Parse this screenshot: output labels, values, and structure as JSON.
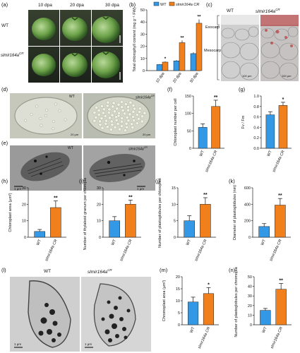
{
  "labels": {
    "a": "(a)",
    "b": "(b)",
    "c": "(c)",
    "d": "(d)",
    "e": "(e)",
    "f": "(f)",
    "g": "(g)",
    "h": "(h)",
    "i": "(i)",
    "j": "(j)",
    "k": "(k)",
    "l": "(l)",
    "m": "(m)",
    "n": "(n)"
  },
  "panel_a": {
    "dpa": [
      "10 dpa",
      "20 dpa",
      "30 dpa"
    ],
    "row_wt": "WT",
    "row_mut": "slmir164a",
    "row_mut_sup": "CR"
  },
  "panel_c": {
    "wt": "WT",
    "mut": "slmir164a",
    "mut_sup": "CR",
    "exocarp": "Exocarp",
    "mesocarp": "Mesocarp",
    "scale": "100 µm"
  },
  "panel_d": {
    "wt": "WT",
    "mut": "slmir164a",
    "mut_sup": "CR",
    "scale": "20 µm"
  },
  "panel_e": {
    "wt": "WT",
    "mut": "slmir164a",
    "mut_sup": "CR",
    "scale": "1 µm"
  },
  "panel_l": {
    "wt": "WT",
    "mut": "slmir164a",
    "mut_sup": "CR",
    "scale": "1 µm"
  },
  "chart_data": [
    {
      "panel": "b",
      "type": "bar",
      "ylabel": "Total chlorophyll content (mg g⁻¹ FW)",
      "categories": [
        "10 dpa",
        "20 dpa",
        "30 dpa"
      ],
      "ylim": [
        0,
        50
      ],
      "yticks": [
        0,
        10,
        20,
        30,
        40,
        50
      ],
      "legend": [
        "WT",
        "slmir164a CR"
      ],
      "series": [
        {
          "name": "WT",
          "values": [
            5,
            8,
            14
          ]
        },
        {
          "name": "slmir164a CR",
          "values": [
            7,
            23,
            39
          ]
        }
      ],
      "significance": [
        "*",
        "**",
        "**"
      ]
    },
    {
      "panel": "f",
      "type": "bar",
      "ylabel": "Chloroplast number per cell",
      "categories": [
        "WT",
        "slmir164a CR"
      ],
      "values": [
        60,
        120
      ],
      "errors": [
        10,
        18
      ],
      "ylim": [
        0,
        150
      ],
      "yticks": [
        0,
        50,
        100,
        150
      ],
      "significance": "**"
    },
    {
      "panel": "g",
      "type": "bar",
      "ylabel": "Fv / Fm",
      "categories": [
        "WT",
        "slmir164a CR"
      ],
      "values": [
        0.64,
        0.82
      ],
      "errors": [
        0.06,
        0.06
      ],
      "ylim": [
        0,
        1.0
      ],
      "yticks": [
        0.0,
        0.2,
        0.4,
        0.6,
        0.8,
        1.0
      ],
      "significance": "*"
    },
    {
      "panel": "h",
      "type": "bar",
      "ylabel": "Chloroplast area (µm²)",
      "categories": [
        "WT",
        "slmir164a CR"
      ],
      "values": [
        3.5,
        18
      ],
      "errors": [
        1.2,
        4
      ],
      "ylim": [
        0,
        30
      ],
      "yticks": [
        0,
        10,
        20,
        30
      ],
      "significance": "**"
    },
    {
      "panel": "i",
      "type": "bar",
      "ylabel": "Number of thylakoid granum per chloroplast",
      "categories": [
        "WT",
        "slmir164a CR"
      ],
      "values": [
        10,
        20
      ],
      "errors": [
        2.5,
        2.5
      ],
      "ylim": [
        0,
        30
      ],
      "yticks": [
        0,
        10,
        20,
        30
      ],
      "significance": "**"
    },
    {
      "panel": "j",
      "type": "bar",
      "ylabel": "Number of plastoglobules per chloroplast",
      "categories": [
        "WT",
        "slmir164a CR"
      ],
      "values": [
        5,
        10
      ],
      "errors": [
        1.5,
        2
      ],
      "ylim": [
        0,
        15
      ],
      "yticks": [
        0,
        5,
        10,
        15
      ],
      "significance": "**"
    },
    {
      "panel": "k",
      "type": "bar",
      "ylabel": "Diameter of plastoglobules (nm)",
      "categories": [
        "WT",
        "slmir164a CR"
      ],
      "values": [
        130,
        390
      ],
      "errors": [
        35,
        80
      ],
      "ylim": [
        0,
        600
      ],
      "yticks": [
        0,
        200,
        400,
        600
      ],
      "significance": "**"
    },
    {
      "panel": "m",
      "type": "bar",
      "ylabel": "Chromoplast area (µm²)",
      "categories": [
        "WT",
        "slmir164a CR"
      ],
      "values": [
        9.5,
        13
      ],
      "errors": [
        2,
        2.5
      ],
      "ylim": [
        0,
        20
      ],
      "yticks": [
        0,
        5,
        10,
        15,
        20
      ],
      "significance": "*"
    },
    {
      "panel": "n",
      "type": "bar",
      "ylabel": "Number of plastoglobules per chromoplast",
      "categories": [
        "WT",
        "slmir164a CR"
      ],
      "values": [
        15,
        37
      ],
      "errors": [
        2,
        6
      ],
      "ylim": [
        0,
        50
      ],
      "yticks": [
        0,
        10,
        20,
        30,
        40,
        50
      ],
      "significance": "**"
    }
  ]
}
